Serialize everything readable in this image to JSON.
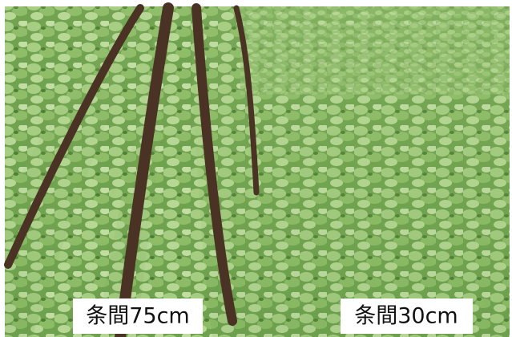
{
  "labels": [
    "条間75cm",
    "条間30cm"
  ]
}
